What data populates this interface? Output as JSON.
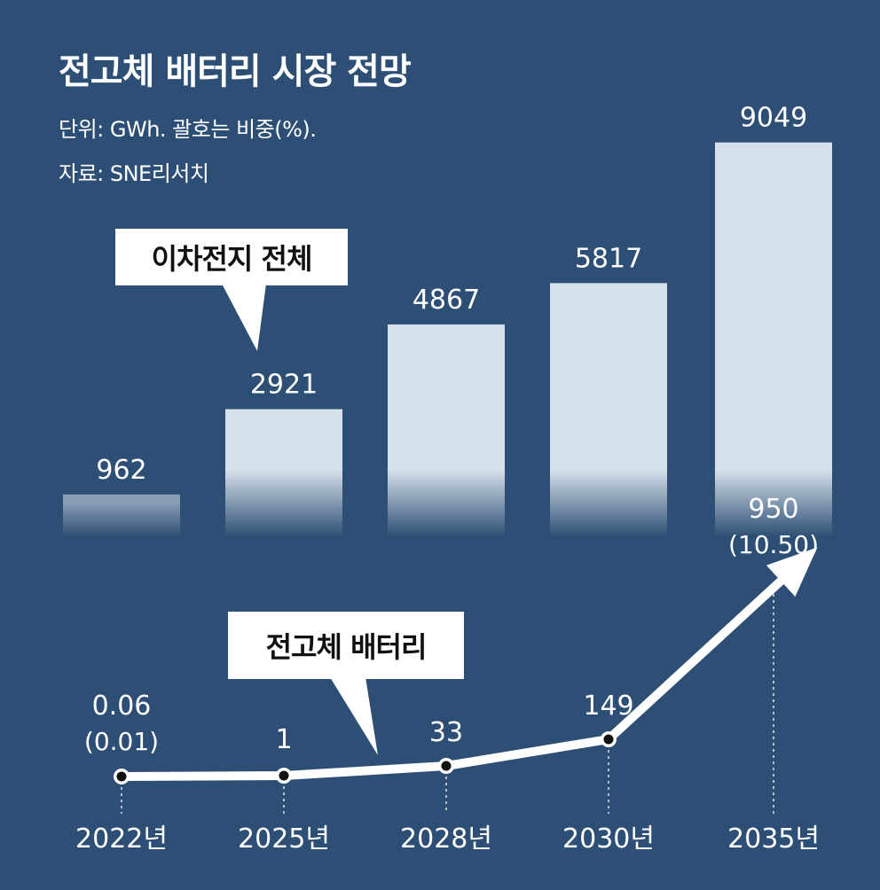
{
  "title": "전고체 배터리 시장 전망",
  "unit_note": "단위: GWh. 괄호는 비중(%).",
  "source_note": "자료: SNE리서치",
  "chart_data": [
    {
      "type": "bar",
      "categories": [
        "2022년",
        "2025년",
        "2028년",
        "2030년",
        "2035년"
      ],
      "series": [
        {
          "name": "이차전지 전체",
          "values": [
            962,
            2921,
            4867,
            5817,
            9049
          ]
        }
      ],
      "value_labels": [
        "962",
        "2921",
        "4867",
        "5817",
        "9049"
      ],
      "colors": {
        "bar": "#d6e0ea",
        "background": "#2e4f75"
      }
    },
    {
      "type": "line",
      "categories": [
        "2022년",
        "2025년",
        "2028년",
        "2030년",
        "2035년"
      ],
      "series": [
        {
          "name": "전고체 배터리",
          "values": [
            0.06,
            1,
            33,
            149,
            950
          ]
        }
      ],
      "value_labels": [
        "0.06",
        "1",
        "33",
        "149",
        "950"
      ],
      "share_labels": [
        "(0.01)",
        "",
        "",
        "",
        "(10.50)"
      ],
      "colors": {
        "line": "#ffffff",
        "marker": "#111111"
      }
    }
  ]
}
